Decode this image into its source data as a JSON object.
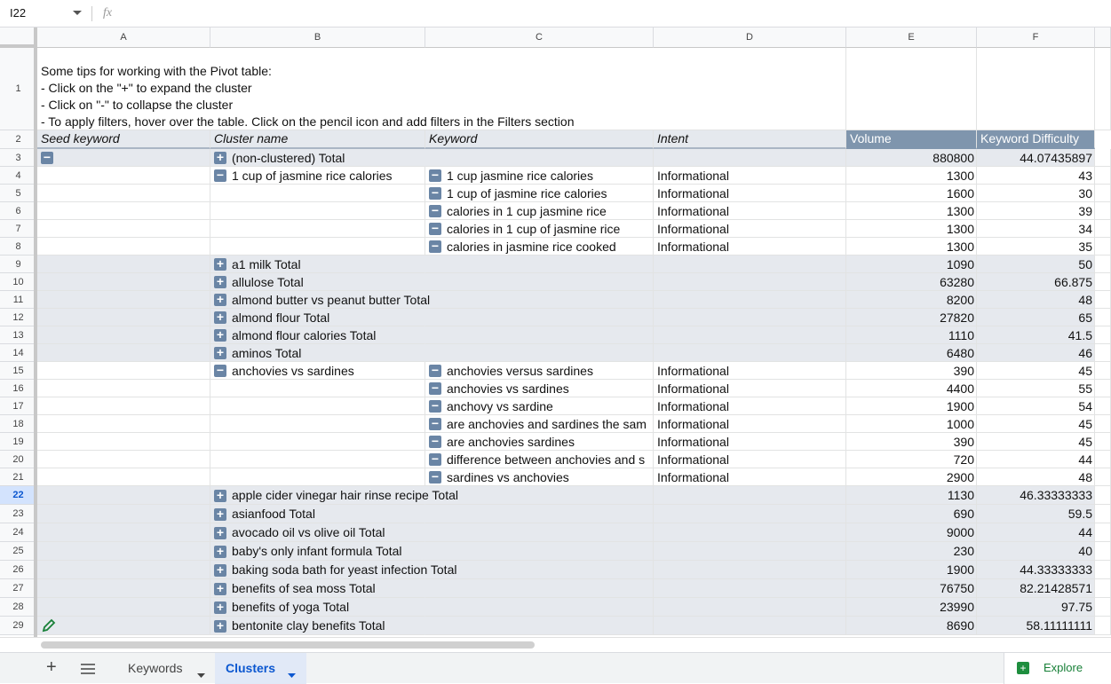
{
  "formula_bar": {
    "cell_ref": "I22",
    "fx": "fx"
  },
  "columns": [
    "A",
    "B",
    "C",
    "D",
    "E",
    "F"
  ],
  "tips": [
    "Some tips for working with the Pivot table:",
    "- Click on the \"+\" to expand the cluster",
    "- Click on \"-\" to collapse the cluster",
    "- To apply filters, hover over the table. Click on the pencil icon and add filters in the Filters section"
  ],
  "header": {
    "n": 2,
    "a": "Seed keyword",
    "b": "Cluster name",
    "c": "Keyword",
    "d": "Intent",
    "e": "Volume",
    "f": "Keyword Difficulty"
  },
  "rows": [
    {
      "n": 3,
      "a_toggle": "minus",
      "b": "(non-clustered) Total",
      "b_toggle": "plus",
      "e": 880800,
      "f": 44.07435897,
      "total": true
    },
    {
      "n": 4,
      "b": "1 cup of jasmine rice calories",
      "b_toggle": "minus",
      "c": "1 cup jasmine rice calories",
      "c_toggle": "minus",
      "d": "Informational",
      "e": 1300,
      "f": 43
    },
    {
      "n": 5,
      "c": "1 cup of jasmine rice calories",
      "c_toggle": "minus",
      "d": "Informational",
      "e": 1600,
      "f": 30
    },
    {
      "n": 6,
      "c": "calories in 1 cup jasmine rice",
      "c_toggle": "minus",
      "d": "Informational",
      "e": 1300,
      "f": 39
    },
    {
      "n": 7,
      "c": "calories in 1 cup of jasmine rice",
      "c_toggle": "minus",
      "d": "Informational",
      "e": 1300,
      "f": 34
    },
    {
      "n": 8,
      "c": "calories in jasmine rice cooked",
      "c_toggle": "minus",
      "d": "Informational",
      "e": 1300,
      "f": 35
    },
    {
      "n": 9,
      "b": "a1 milk Total",
      "b_toggle": "plus",
      "e": 1090,
      "f": 50,
      "total": true
    },
    {
      "n": 10,
      "b": "allulose Total",
      "b_toggle": "plus",
      "e": 63280,
      "f": 66.875,
      "total": true
    },
    {
      "n": 11,
      "b": "almond butter vs peanut butter Total",
      "b_toggle": "plus",
      "e": 8200,
      "f": 48,
      "total": true
    },
    {
      "n": 12,
      "b": "almond flour Total",
      "b_toggle": "plus",
      "e": 27820,
      "f": 65,
      "total": true
    },
    {
      "n": 13,
      "b": "almond flour calories Total",
      "b_toggle": "plus",
      "e": 1110,
      "f": 41.5,
      "total": true
    },
    {
      "n": 14,
      "b": "aminos Total",
      "b_toggle": "plus",
      "e": 6480,
      "f": 46,
      "total": true
    },
    {
      "n": 15,
      "b": "anchovies vs sardines",
      "b_toggle": "minus",
      "c": "anchovies versus sardines",
      "c_toggle": "minus",
      "d": "Informational",
      "e": 390,
      "f": 45
    },
    {
      "n": 16,
      "c": "anchovies vs sardines",
      "c_toggle": "minus",
      "d": "Informational",
      "e": 4400,
      "f": 55
    },
    {
      "n": 17,
      "c": "anchovy vs sardine",
      "c_toggle": "minus",
      "d": "Informational",
      "e": 1900,
      "f": 54
    },
    {
      "n": 18,
      "c": "are anchovies and sardines the sam",
      "c_toggle": "minus",
      "d": "Informational",
      "e": 1000,
      "f": 45
    },
    {
      "n": 19,
      "c": "are anchovies sardines",
      "c_toggle": "minus",
      "d": "Informational",
      "e": 390,
      "f": 45
    },
    {
      "n": 20,
      "c": "difference between anchovies and s",
      "c_toggle": "minus",
      "d": "Informational",
      "e": 720,
      "f": 44
    },
    {
      "n": 21,
      "c": "sardines vs anchovies",
      "c_toggle": "minus",
      "d": "Informational",
      "e": 2900,
      "f": 48
    },
    {
      "n": 22,
      "b": "apple cider vinegar hair rinse recipe Total",
      "b_toggle": "plus",
      "e": 1130,
      "f": 46.33333333,
      "total": true,
      "selected": true
    },
    {
      "n": 23,
      "b": "asianfood Total",
      "b_toggle": "plus",
      "e": 690,
      "f": 59.5,
      "total": true
    },
    {
      "n": 24,
      "b": "avocado oil vs olive oil Total",
      "b_toggle": "plus",
      "e": 9000,
      "f": 44,
      "total": true
    },
    {
      "n": 25,
      "b": "baby's only infant formula Total",
      "b_toggle": "plus",
      "e": 230,
      "f": 40,
      "total": true
    },
    {
      "n": 26,
      "b": "baking soda bath for yeast infection Total",
      "b_toggle": "plus",
      "e": 1900,
      "f": 44.33333333,
      "total": true
    },
    {
      "n": 27,
      "b": "benefits of sea moss Total",
      "b_toggle": "plus",
      "e": 76750,
      "f": 82.21428571,
      "total": true
    },
    {
      "n": 28,
      "b": "benefits of yoga Total",
      "b_toggle": "plus",
      "e": 23990,
      "f": 97.75,
      "total": true
    },
    {
      "n": 29,
      "b": "bentonite clay benefits Total",
      "b_toggle": "plus",
      "e": 8690,
      "f": 58.11111111,
      "total": true
    }
  ],
  "tabs": [
    {
      "label": "Keywords"
    },
    {
      "label": "Clusters",
      "active": true
    }
  ],
  "explore": "Explore"
}
